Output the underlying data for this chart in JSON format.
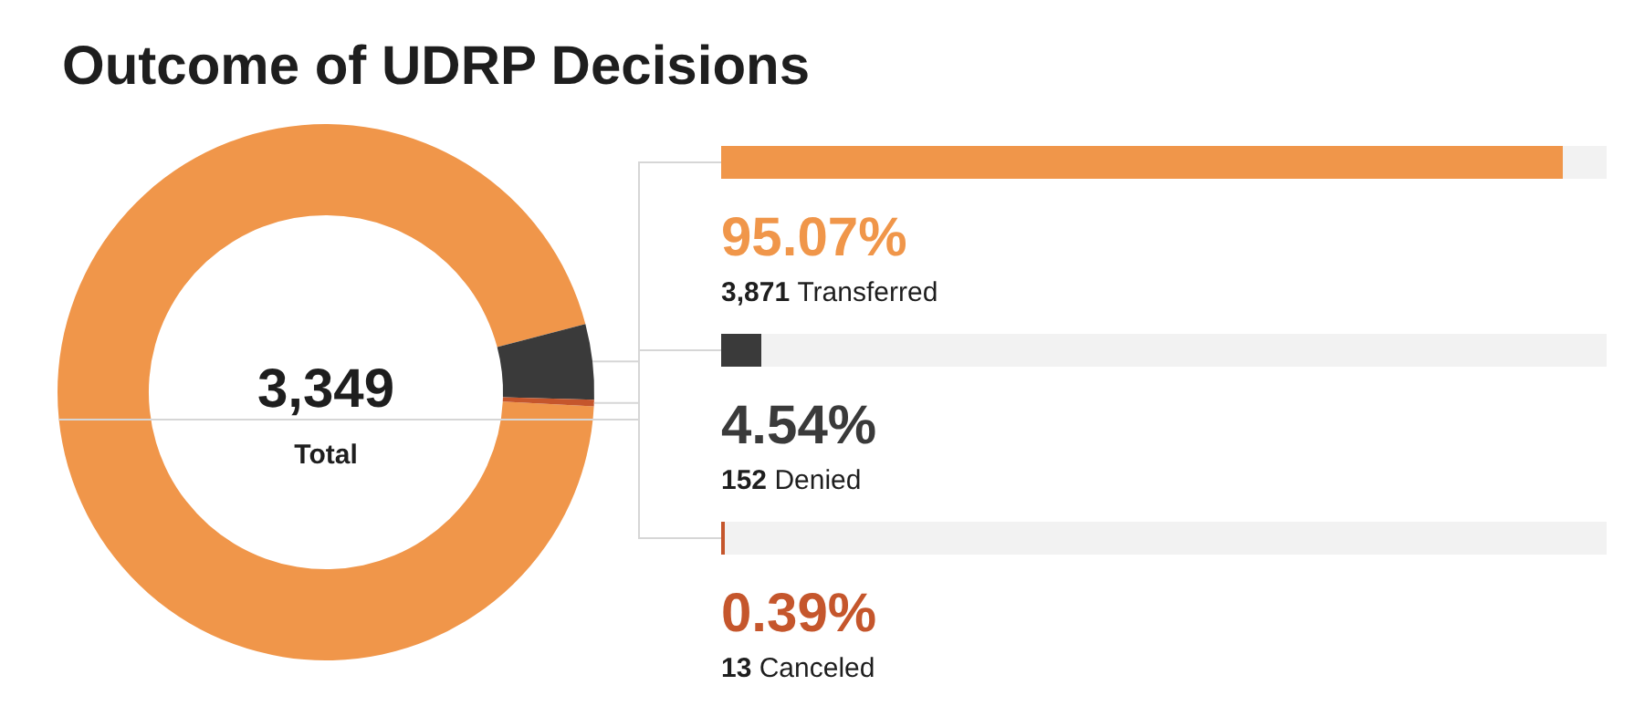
{
  "chart_data": {
    "type": "donut",
    "title": "Outcome of UDRP Decisions",
    "categories": [
      "Transferred",
      "Denied",
      "Canceled"
    ],
    "values": [
      95.07,
      4.54,
      0.39
    ],
    "colors": [
      "#f0964a",
      "#3a3a3a",
      "#c5562c"
    ],
    "value_labels": [
      "95.07%",
      "4.54%",
      "0.39%"
    ],
    "annotations": [
      "3,349",
      "Total",
      "3,871",
      "152",
      "13"
    ],
    "legend": false
  }
}
